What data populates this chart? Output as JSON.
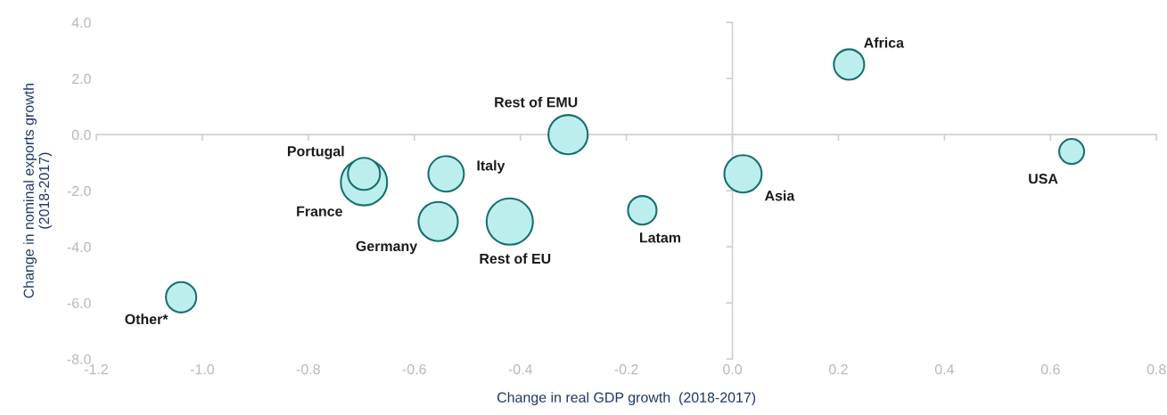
{
  "chart_data": {
    "type": "bubble",
    "xlabel": "Change in real GDP growth  (2018-2017)",
    "ylabel": "Change in nominal exports growth\n(2018-2017)",
    "xlim": [
      -1.2,
      0.8
    ],
    "xticks": [
      {
        "value": -1.2,
        "label": "-1.2"
      },
      {
        "value": -1.0,
        "label": "-1.0"
      },
      {
        "value": -0.8,
        "label": "-0.8"
      },
      {
        "value": -0.6,
        "label": "-0.6"
      },
      {
        "value": -0.4,
        "label": "-0.4"
      },
      {
        "value": -0.2,
        "label": "-0.2"
      },
      {
        "value": 0.0,
        "label": "0.0"
      },
      {
        "value": 0.2,
        "label": "0.2"
      },
      {
        "value": 0.4,
        "label": "0.4"
      },
      {
        "value": 0.6,
        "label": "0.6"
      },
      {
        "value": 0.8,
        "label": "0.8"
      }
    ],
    "ylim": [
      -8.0,
      4.0
    ],
    "yticks": [
      {
        "value": -8.0,
        "label": "-8.0"
      },
      {
        "value": -6.0,
        "label": "-6.0"
      },
      {
        "value": -4.0,
        "label": "-4.0"
      },
      {
        "value": -2.0,
        "label": "-2.0"
      },
      {
        "value": 0.0,
        "label": "0.0"
      },
      {
        "value": 2.0,
        "label": "2.0"
      },
      {
        "value": 4.0,
        "label": "4.0"
      }
    ],
    "legend": false,
    "series": [
      {
        "name": "Africa",
        "color": "#bdeeee",
        "x": [
          0.22
        ],
        "values": [
          2.5
        ],
        "sizes": [
          0.43
        ]
      },
      {
        "name": "USA",
        "color": "#bdeeee",
        "x": [
          0.64
        ],
        "values": [
          -0.6
        ],
        "sizes": [
          0.29
        ]
      },
      {
        "name": "Asia",
        "color": "#bdeeee",
        "x": [
          0.02
        ],
        "values": [
          -1.4
        ],
        "sizes": [
          0.65
        ]
      },
      {
        "name": "Latam",
        "color": "#bdeeee",
        "x": [
          -0.17
        ],
        "values": [
          -2.7
        ],
        "sizes": [
          0.38
        ]
      },
      {
        "name": "Rest of EMU",
        "color": "#bdeeee",
        "x": [
          -0.31
        ],
        "values": [
          0.0
        ],
        "sizes": [
          0.72
        ]
      },
      {
        "name": "Rest of EU",
        "color": "#bdeeee",
        "x": [
          -0.42
        ],
        "values": [
          -3.1
        ],
        "sizes": [
          1
        ]
      },
      {
        "name": "Germany",
        "color": "#bdeeee",
        "x": [
          -0.555
        ],
        "values": [
          -3.1
        ],
        "sizes": [
          0.72
        ]
      },
      {
        "name": "Italy",
        "color": "#bdeeee",
        "x": [
          -0.54
        ],
        "values": [
          -1.4
        ],
        "sizes": [
          0.59
        ]
      },
      {
        "name": "France",
        "color": "#bdeeee",
        "x": [
          -0.695
        ],
        "values": [
          -1.7
        ],
        "sizes": [
          1
        ]
      },
      {
        "name": "Portugal",
        "color": "#bdeeee",
        "x": [
          -0.695
        ],
        "values": [
          -1.4
        ],
        "sizes": [
          0.48
        ]
      },
      {
        "name": "Other*",
        "color": "#bdeeee",
        "x": [
          -1.04
        ],
        "values": [
          -5.8
        ],
        "sizes": [
          0.43
        ]
      }
    ]
  }
}
